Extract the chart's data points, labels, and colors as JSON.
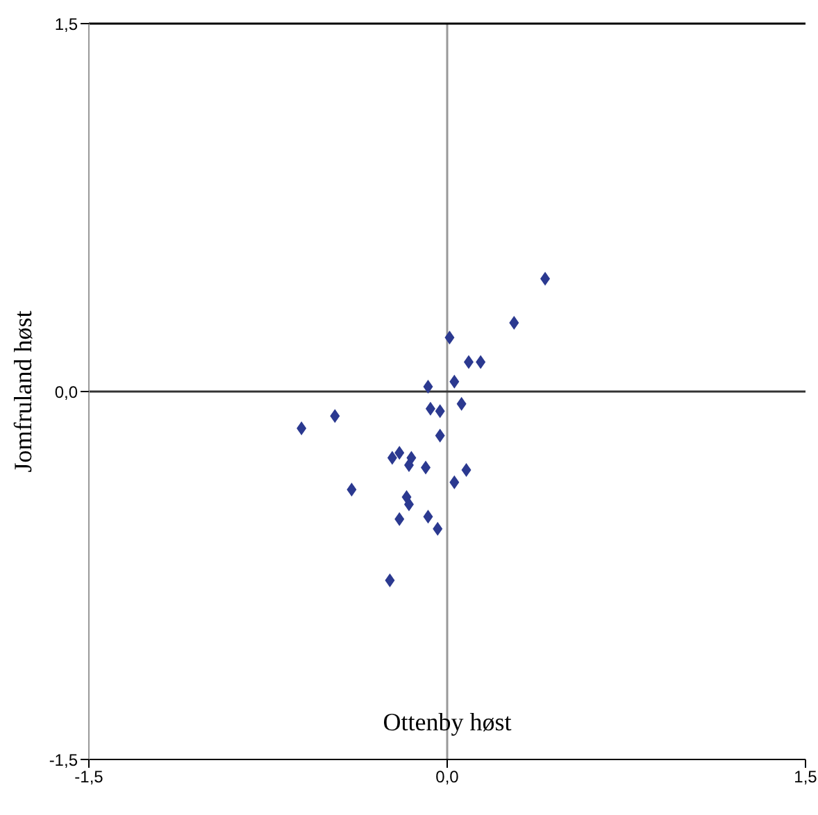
{
  "chart_data": {
    "type": "scatter",
    "xlabel": "Ottenby høst",
    "ylabel": "Jomfruland høst",
    "x": [
      0.41,
      0.28,
      0.01,
      0.09,
      0.14,
      0.03,
      -0.08,
      0.06,
      -0.07,
      -0.03,
      -0.47,
      -0.61,
      -0.03,
      -0.2,
      -0.23,
      -0.15,
      -0.16,
      -0.09,
      0.08,
      0.03,
      -0.4,
      -0.17,
      -0.16,
      -0.2,
      -0.08,
      -0.04,
      -0.24
    ],
    "series": [
      {
        "color": "#2b3990",
        "values": [
          0.46,
          0.28,
          0.22,
          0.12,
          0.12,
          0.04,
          0.02,
          -0.05,
          -0.07,
          -0.08,
          -0.1,
          -0.15,
          -0.18,
          -0.25,
          -0.27,
          -0.27,
          -0.3,
          -0.31,
          -0.32,
          -0.37,
          -0.4,
          -0.43,
          -0.46,
          -0.52,
          -0.51,
          -0.56,
          -0.77
        ]
      }
    ],
    "xlim": [
      -1.5,
      1.5
    ],
    "ylim": [
      -1.5,
      1.5
    ],
    "xticks": [
      {
        "value": -1.5,
        "label": "-1,5"
      },
      {
        "value": 0,
        "label": "0,0"
      },
      {
        "value": 1.5,
        "label": "1,5"
      }
    ],
    "yticks": [
      {
        "value": -1.5,
        "label": "-1,5"
      },
      {
        "value": 0,
        "label": "0,0"
      },
      {
        "value": 1.5,
        "label": "1,5"
      }
    ],
    "ref_lines": [
      {
        "axis": "x",
        "value": 0,
        "color": "#999999"
      },
      {
        "axis": "y",
        "value": 0,
        "color": "#333333"
      }
    ],
    "marker": "diamond",
    "grid": false,
    "legend": false
  }
}
